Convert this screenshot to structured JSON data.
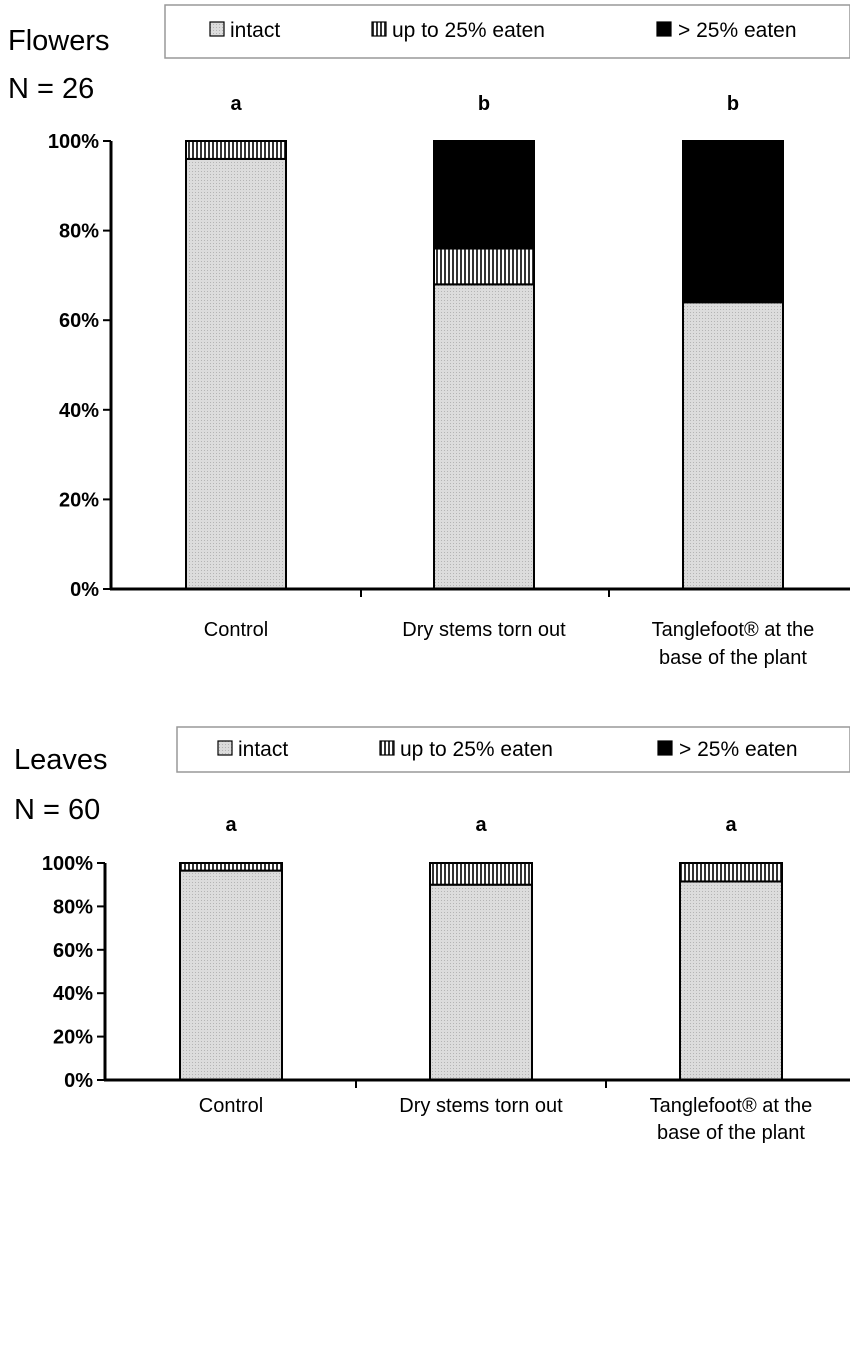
{
  "legend": {
    "intact": "intact",
    "up_to_25": "up to 25% eaten",
    "over_25": "> 25% eaten"
  },
  "colors": {
    "intact": "#dcdcdc",
    "up_to_25": "#7a7a7a",
    "over_25": "#000000",
    "axis": "#000000",
    "legend_border": "#999999"
  },
  "chart_data": [
    {
      "type": "bar",
      "stacked": true,
      "panel_title": "Flowers",
      "sample_size": "N = 26",
      "categories": [
        "Control",
        "Dry stems torn out",
        "Tanglefoot® at the base of the plant"
      ],
      "category_lines": [
        [
          "Control"
        ],
        [
          "Dry stems torn out"
        ],
        [
          "Tanglefoot® at the",
          "base of the plant"
        ]
      ],
      "significance": [
        "a",
        "b",
        "b"
      ],
      "series": [
        {
          "name": "intact",
          "values": [
            96,
            68,
            64
          ]
        },
        {
          "name": "up to 25% eaten",
          "values": [
            4,
            8,
            0
          ]
        },
        {
          "name": "> 25% eaten",
          "values": [
            0,
            24,
            36
          ]
        }
      ],
      "yticks": [
        "0%",
        "20%",
        "40%",
        "60%",
        "80%",
        "100%"
      ],
      "ylim": [
        0,
        100
      ],
      "legend_position": "top",
      "grid": false
    },
    {
      "type": "bar",
      "stacked": true,
      "panel_title": "Leaves",
      "sample_size": "N = 60",
      "categories": [
        "Control",
        "Dry stems torn out",
        "Tanglefoot® at the base of the plant"
      ],
      "category_lines": [
        [
          "Control"
        ],
        [
          "Dry stems torn out"
        ],
        [
          "Tanglefoot® at the",
          "base of the plant"
        ]
      ],
      "significance": [
        "a",
        "a",
        "a"
      ],
      "series": [
        {
          "name": "intact",
          "values": [
            96.5,
            90,
            91.5
          ]
        },
        {
          "name": "up to 25% eaten",
          "values": [
            3.5,
            10,
            8.5
          ]
        },
        {
          "name": "> 25% eaten",
          "values": [
            0,
            0,
            0
          ]
        }
      ],
      "yticks": [
        "0%",
        "20%",
        "40%",
        "60%",
        "80%",
        "100%"
      ],
      "ylim": [
        0,
        100
      ],
      "legend_position": "top",
      "grid": false
    }
  ]
}
